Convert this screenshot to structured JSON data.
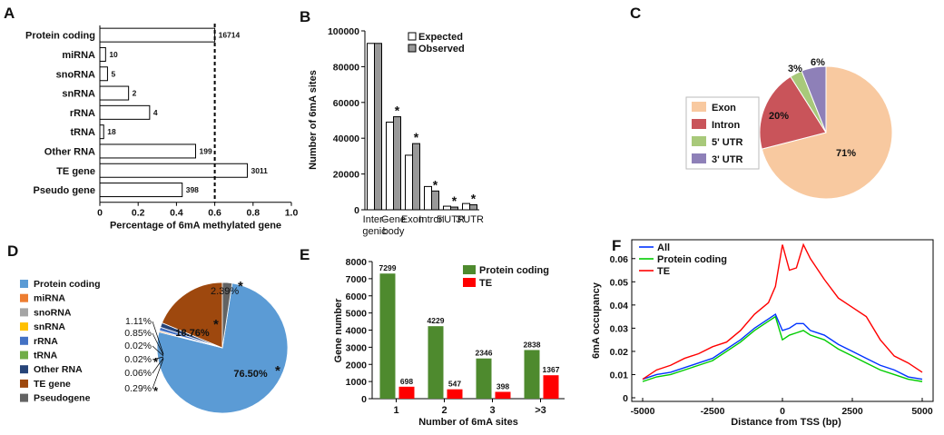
{
  "chart_data": [
    {
      "panel": "A",
      "type": "bar",
      "orientation": "horizontal",
      "categories": [
        "Protein coding",
        "miRNA",
        "snoRNA",
        "snRNA",
        "rRNA",
        "tRNA",
        "Other RNA",
        "TE gene",
        "Pseudo gene"
      ],
      "values": [
        0.6,
        0.03,
        0.04,
        0.15,
        0.26,
        0.02,
        0.5,
        0.77,
        0.43
      ],
      "counts": [
        "16714",
        "10",
        "5",
        "2",
        "4",
        "18",
        "199",
        "3011",
        "398"
      ],
      "xlabel": "Percentage of 6mA methylated gene",
      "xlim": [
        0,
        1.0
      ],
      "xticks": [
        "0",
        "0.2",
        "0.4",
        "0.6",
        "0.8",
        "1.0"
      ],
      "reference_line": 0.6
    },
    {
      "panel": "B",
      "type": "bar",
      "categories": [
        "Inter-\ngenic",
        "Gene\nbody",
        "Exon",
        "Intron",
        "5'UTR",
        "3'UTR"
      ],
      "series": [
        {
          "name": "Expected",
          "values": [
            93000,
            49000,
            30500,
            13000,
            2000,
            3500
          ]
        },
        {
          "name": "Observed",
          "values": [
            93000,
            52000,
            37000,
            10500,
            1500,
            2800
          ]
        }
      ],
      "significant": [
        false,
        true,
        true,
        true,
        true,
        true
      ],
      "ylabel": "Number of 6mA sites",
      "ylim": [
        0,
        100000
      ],
      "yticks": [
        "0",
        "20000",
        "40000",
        "60000",
        "80000",
        "100000"
      ],
      "legend": "top-right",
      "colors": {
        "expected": "#ffffff",
        "observed": "#999999"
      }
    },
    {
      "panel": "C",
      "type": "pie",
      "labels": [
        "Exon",
        "Intron",
        "5' UTR",
        "3' UTR"
      ],
      "values": [
        71,
        20,
        3,
        6
      ],
      "value_labels": [
        "71%",
        "20%",
        "3%",
        "6%"
      ],
      "colors": [
        "#f8c9a0",
        "#c9545a",
        "#a8c97a",
        "#8e80b8"
      ],
      "legend": "left"
    },
    {
      "panel": "D",
      "type": "pie",
      "labels": [
        "Protein coding",
        "miRNA",
        "snoRNA",
        "snRNA",
        "rRNA",
        "tRNA",
        "Other RNA",
        "TE gene",
        "Pseudogene"
      ],
      "values": [
        76.5,
        0.29,
        0.06,
        0.02,
        0.85,
        0.02,
        1.11,
        18.76,
        2.39
      ],
      "value_labels": [
        "76.50%",
        "0.29%",
        "0.06%",
        "0.02%",
        "0.85%",
        "0.02%",
        "1.11%",
        "18.76%",
        "2.39%"
      ],
      "starred": [
        true,
        true,
        false,
        false,
        false,
        true,
        false,
        true,
        true
      ],
      "colors": [
        "#5b9bd5",
        "#ed7d31",
        "#a5a5a5",
        "#ffc000",
        "#4472c4",
        "#70ad47",
        "#264478",
        "#9e480e",
        "#636363"
      ],
      "legend": "left"
    },
    {
      "panel": "E",
      "type": "bar",
      "categories": [
        "1",
        "2",
        "3",
        ">3"
      ],
      "series": [
        {
          "name": "Protein coding",
          "values": [
            7299,
            4229,
            2346,
            2838
          ]
        },
        {
          "name": "TE",
          "values": [
            698,
            547,
            398,
            1367
          ]
        }
      ],
      "xlabel": "Number of 6mA sites",
      "ylabel": "Gene number",
      "ylim": [
        0,
        8000
      ],
      "yticks": [
        "0",
        "1000",
        "2000",
        "3000",
        "4000",
        "5000",
        "6000",
        "7000",
        "8000"
      ],
      "legend": "top-right",
      "colors": {
        "protein": "#4e8a2e",
        "te": "#ff0000"
      }
    },
    {
      "panel": "F",
      "type": "line",
      "x": [
        -5000,
        -4500,
        -4000,
        -3500,
        -3000,
        -2500,
        -2000,
        -1500,
        -1000,
        -500,
        -250,
        0,
        250,
        500,
        750,
        1000,
        1500,
        2000,
        2500,
        3000,
        3500,
        4000,
        4500,
        5000
      ],
      "series": [
        {
          "name": "All",
          "values": [
            0.008,
            0.01,
            0.011,
            0.013,
            0.015,
            0.017,
            0.021,
            0.025,
            0.03,
            0.034,
            0.036,
            0.029,
            0.03,
            0.032,
            0.032,
            0.029,
            0.027,
            0.023,
            0.02,
            0.017,
            0.014,
            0.012,
            0.009,
            0.008
          ]
        },
        {
          "name": "Protein coding",
          "values": [
            0.007,
            0.009,
            0.01,
            0.012,
            0.014,
            0.016,
            0.02,
            0.024,
            0.029,
            0.033,
            0.035,
            0.025,
            0.027,
            0.028,
            0.029,
            0.027,
            0.025,
            0.021,
            0.018,
            0.015,
            0.012,
            0.01,
            0.008,
            0.007
          ]
        },
        {
          "name": "TE",
          "values": [
            0.008,
            0.012,
            0.014,
            0.017,
            0.019,
            0.022,
            0.024,
            0.029,
            0.036,
            0.041,
            0.048,
            0.066,
            0.055,
            0.056,
            0.066,
            0.06,
            0.051,
            0.043,
            0.039,
            0.035,
            0.025,
            0.018,
            0.015,
            0.011
          ]
        }
      ],
      "xlabel": "Distance from TSS (bp)",
      "ylabel": "6mA occupancy",
      "xlim": [
        -5000,
        5000
      ],
      "ylim": [
        0,
        0.065
      ],
      "xticks": [
        "-5000",
        "-2500",
        "0",
        "2500",
        "5000"
      ],
      "yticks": [
        "0",
        "0.01",
        "0.02",
        "0.03",
        "0.04",
        "0.05",
        "0.06"
      ],
      "legend": "top-left",
      "colors": {
        "all": "#0033ff",
        "protein": "#00cc00",
        "te": "#ff0000"
      }
    }
  ],
  "panel_letters": [
    "A",
    "B",
    "C",
    "D",
    "E",
    "F"
  ],
  "star": "*"
}
